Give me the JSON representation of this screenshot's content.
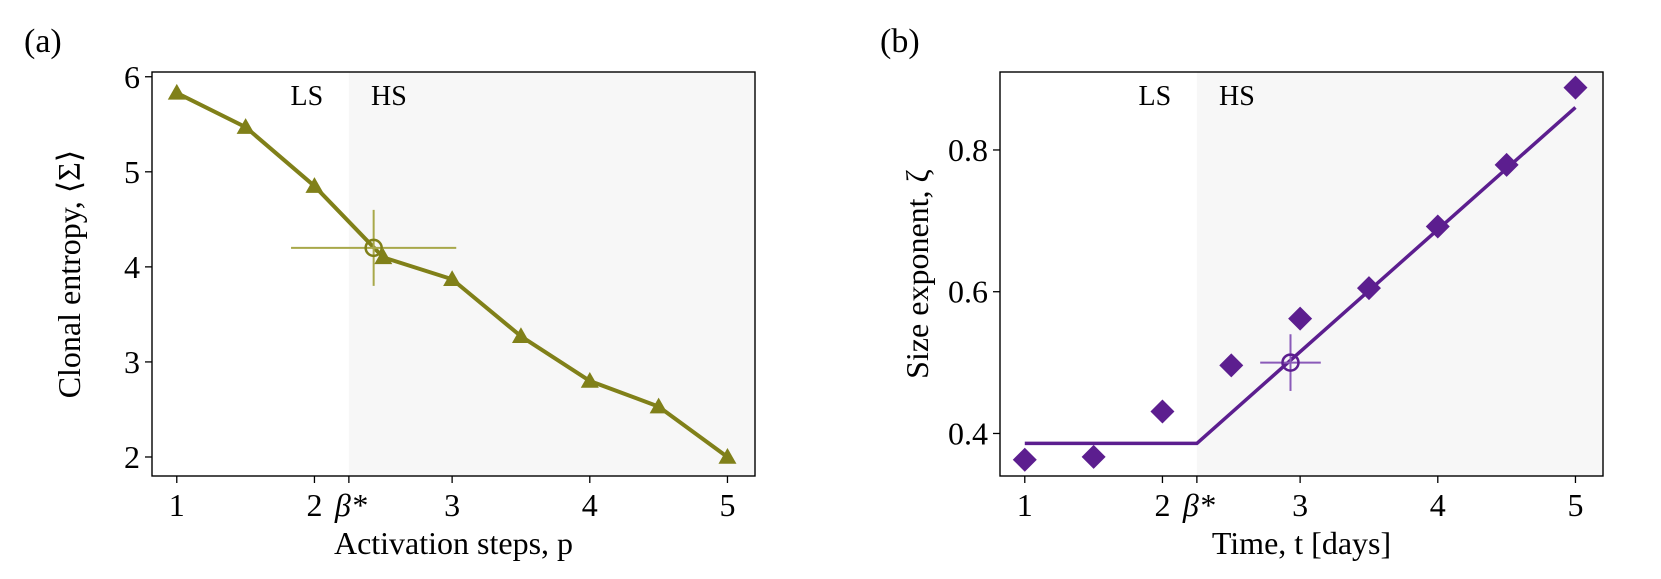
{
  "figure": {
    "panels": [
      {
        "panel_label": "(a)",
        "region_labels": [
          "LS",
          "HS"
        ],
        "color": "#808019",
        "chart_data": {
          "type": "line",
          "xlabel": "Activation steps, p",
          "ylabel": "Clonal entropy, ⟨Σ⟩",
          "xlim": [
            0.82,
            5.2
          ],
          "ylim": [
            1.8,
            6.05
          ],
          "xticks": [
            1,
            2,
            3,
            4,
            5
          ],
          "yticks": [
            2,
            3,
            4,
            5,
            6
          ],
          "threshold": {
            "label": "β*",
            "x": 2.25
          },
          "critical_point": {
            "x": 2.43,
            "y": 4.2,
            "xerr": 0.6,
            "yerr": 0.4
          },
          "grid": false,
          "series": [
            {
              "marker": "triangle",
              "x": [
                1,
                1.5,
                2,
                2.5,
                3,
                3.5,
                4,
                4.5,
                5
              ],
              "y": [
                5.83,
                5.47,
                4.85,
                4.1,
                3.87,
                3.27,
                2.8,
                2.53,
                2.0
              ]
            }
          ]
        }
      },
      {
        "panel_label": "(b)",
        "region_labels": [
          "LS",
          "HS"
        ],
        "color": "#5c1e8f",
        "chart_data": {
          "type": "scatter",
          "xlabel": "Time, t [days]",
          "ylabel": "Size exponent, ζ",
          "xlim": [
            0.82,
            5.2
          ],
          "ylim": [
            0.34,
            0.91
          ],
          "xticks": [
            1,
            2,
            3,
            4,
            5
          ],
          "yticks": [
            0.4,
            0.6,
            0.8
          ],
          "threshold": {
            "label": "β*",
            "x": 2.25
          },
          "critical_point": {
            "x": 2.93,
            "y": 0.5,
            "xerr": 0.22,
            "yerr": 0.04
          },
          "grid": false,
          "series": [
            {
              "marker": "diamond",
              "x": [
                1,
                1.5,
                2,
                2.5,
                3,
                3.5,
                4,
                4.5,
                5
              ],
              "y": [
                0.363,
                0.367,
                0.431,
                0.496,
                0.562,
                0.605,
                0.692,
                0.779,
                0.888
              ]
            }
          ],
          "fit_line": {
            "x": [
              1,
              2.25,
              5
            ],
            "y": [
              0.386,
              0.386,
              0.86
            ]
          }
        }
      }
    ]
  }
}
